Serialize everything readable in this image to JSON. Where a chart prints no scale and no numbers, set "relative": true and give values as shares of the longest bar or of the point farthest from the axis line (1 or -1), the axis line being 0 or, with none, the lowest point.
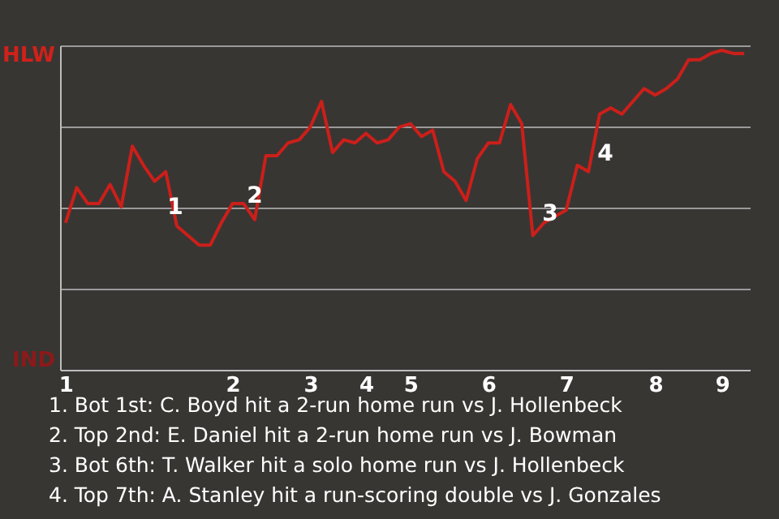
{
  "chart_data": {
    "type": "line",
    "relative": true,
    "categories": [
      "1",
      null,
      null,
      null,
      null,
      null,
      null,
      null,
      null,
      null,
      null,
      null,
      null,
      null,
      null,
      "2",
      null,
      null,
      null,
      null,
      null,
      null,
      "3",
      null,
      null,
      null,
      null,
      "4",
      null,
      null,
      null,
      "5",
      null,
      null,
      null,
      null,
      null,
      null,
      "6",
      null,
      null,
      null,
      null,
      null,
      null,
      "7",
      null,
      null,
      null,
      null,
      null,
      null,
      null,
      "8",
      null,
      null,
      null,
      null,
      null,
      "9",
      null,
      null
    ],
    "series": [
      {
        "color": "#cc1f1a",
        "values": [
          0.46,
          0.57,
          0.52,
          0.52,
          0.58,
          0.51,
          0.7,
          0.64,
          0.59,
          0.62,
          0.45,
          0.42,
          0.39,
          0.39,
          0.46,
          0.52,
          0.52,
          0.47,
          0.67,
          0.67,
          0.71,
          0.72,
          0.76,
          0.84,
          0.68,
          0.72,
          0.71,
          0.74,
          0.71,
          0.72,
          0.76,
          0.77,
          0.73,
          0.75,
          0.62,
          0.59,
          0.53,
          0.66,
          0.71,
          0.71,
          0.83,
          0.77,
          0.42,
          0.46,
          0.48,
          0.5,
          0.64,
          0.62,
          0.8,
          0.82,
          0.8,
          0.84,
          0.88,
          0.86,
          0.88,
          0.91,
          0.97,
          0.97,
          0.99,
          1,
          0.99,
          0.99
        ]
      }
    ],
    "grid": "y",
    "marker": "none",
    "line_style": "solid",
    "annotations": [
      "1",
      "2",
      "3",
      "4",
      "HLW",
      "IND",
      "1. Bot 1st: C. Boyd hit a 2-run home run vs J. Hollenbeck",
      "2. Top 2nd: E. Daniel hit a 2-run home run vs J. Bowman",
      "3. Bot 6th: T. Walker hit a solo home run vs J. Hollenbeck",
      "4. Top 7th: A. Stanley hit a run-scoring double vs J. Gonzales"
    ]
  }
}
